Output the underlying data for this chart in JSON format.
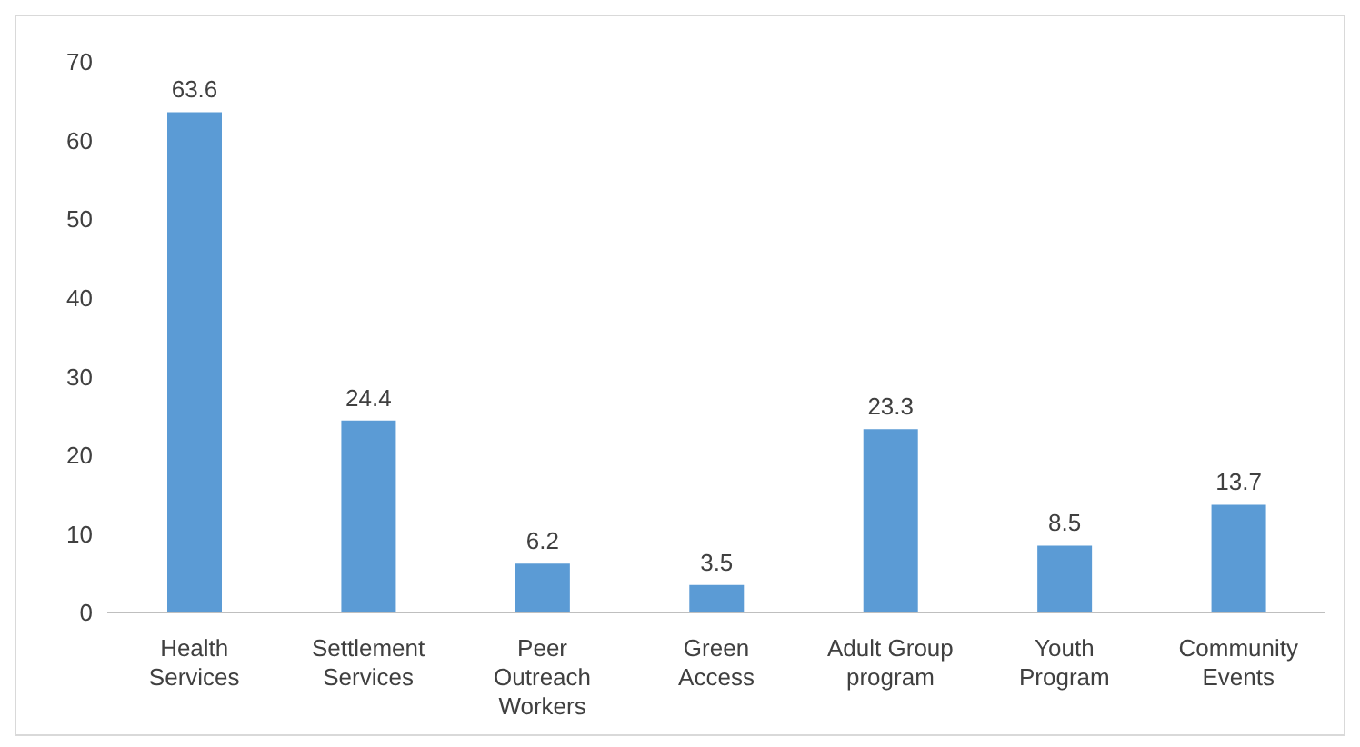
{
  "chart_data": {
    "type": "bar",
    "categories": [
      "Health Services",
      "Settlement Services",
      "Peer Outreach Workers",
      "Green Access",
      "Adult Group program",
      "Youth Program",
      "Community Events"
    ],
    "values": [
      63.6,
      24.4,
      6.2,
      3.5,
      23.3,
      8.5,
      13.7
    ],
    "color": "#5b9bd5",
    "ylim": [
      0,
      70
    ],
    "yticks": [
      0,
      10,
      20,
      30,
      40,
      50,
      60,
      70
    ],
    "grid": false,
    "data_labels": true
  }
}
